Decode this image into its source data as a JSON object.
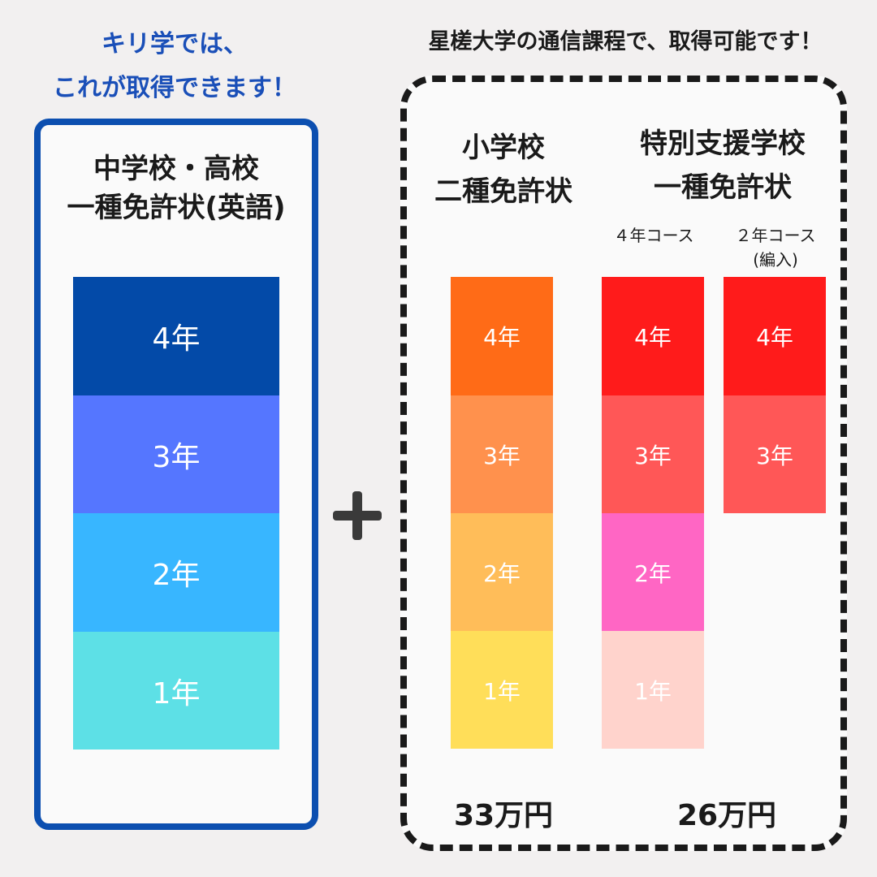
{
  "headline_left": [
    "キリ学では、",
    "これが取得できます！"
  ],
  "headline_right": "星槎大学の通信課程で、取得可能です！",
  "left_card": {
    "title": [
      "中学校・高校",
      "一種免許状(英語)"
    ],
    "years": [
      {
        "label": "4年",
        "color": "#034aa8"
      },
      {
        "label": "3年",
        "color": "#5576ff"
      },
      {
        "label": "2年",
        "color": "#38b6ff"
      },
      {
        "label": "1年",
        "color": "#5de0e6"
      }
    ]
  },
  "plus_icon": "plus-icon",
  "elementary": {
    "title": [
      "小学校",
      "二種免許状"
    ],
    "years": [
      {
        "label": "4年",
        "color": "#ff6b17"
      },
      {
        "label": "3年",
        "color": "#ff914d"
      },
      {
        "label": "2年",
        "color": "#ffbd59"
      },
      {
        "label": "1年",
        "color": "#ffde59"
      }
    ],
    "price": "33万円"
  },
  "special": {
    "title": [
      "特別支援学校",
      "一種免許状"
    ],
    "course4": {
      "label": "４年コース",
      "years": [
        {
          "label": "4年",
          "color": "#ff1b1b"
        },
        {
          "label": "3年",
          "color": "#ff5757"
        },
        {
          "label": "2年",
          "color": "#ff66c4"
        },
        {
          "label": "1年",
          "color": "#ffd3cc"
        }
      ]
    },
    "course2": {
      "label": [
        "２年コース",
        "(編入)"
      ],
      "years": [
        {
          "label": "4年",
          "color": "#ff1b1b"
        },
        {
          "label": "3年",
          "color": "#ff5757"
        }
      ]
    },
    "price": "26万円"
  }
}
